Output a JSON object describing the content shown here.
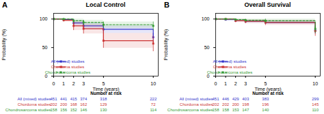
{
  "chart_data": [
    {
      "type": "step",
      "title": "Local Control",
      "annotations": [
        "A"
      ],
      "xlabel": "Time (years)",
      "ylabel": "Probability (%)",
      "xlim": [
        0,
        10.5
      ],
      "ylim": [
        0,
        110
      ],
      "xticks": [
        0,
        1,
        2,
        3,
        5,
        10
      ],
      "yticks": [
        0,
        50,
        100
      ],
      "grid": false,
      "legend": "lower left",
      "marker": "square",
      "x": [
        0,
        1,
        2,
        3,
        5,
        10
      ],
      "series": [
        {
          "name": "All (mixed) studies",
          "color": "#3333cc",
          "line_style": "solid",
          "values": [
            100,
            99,
            93,
            88,
            82,
            68
          ],
          "ci_upper": [
            100,
            100,
            97,
            93,
            88,
            75
          ],
          "ci_lower": [
            100,
            97,
            88,
            82,
            75,
            60
          ],
          "at_risk": [
            451,
            441,
            415,
            374,
            318,
            222
          ]
        },
        {
          "name": "Chordoma studies",
          "color": "#cc3333",
          "line_style": "solid",
          "values": [
            100,
            98,
            88,
            83,
            62,
            57
          ],
          "ci_upper": [
            100,
            100,
            95,
            91,
            75,
            70
          ],
          "ci_lower": [
            100,
            95,
            80,
            74,
            49,
            43
          ],
          "at_risk": [
            202,
            200,
            168,
            162,
            129,
            72
          ]
        },
        {
          "name": "Chondrosarcoma studies",
          "color": "#339933",
          "line_style": "dashed",
          "values": [
            100,
            100,
            97,
            94,
            90,
            88
          ],
          "ci_upper": [
            100,
            100,
            100,
            98,
            95,
            95
          ],
          "ci_lower": [
            100,
            99,
            93,
            89,
            84,
            80
          ],
          "at_risk": [
            158,
            156,
            152,
            146,
            130,
            114
          ]
        }
      ],
      "at_risk_title": "Number at risk",
      "at_risk_times": [
        0,
        1,
        2,
        3,
        5,
        10
      ]
    },
    {
      "type": "step",
      "title": "Overall Survival",
      "annotations": [
        "B"
      ],
      "xlabel": "Time (years)",
      "ylabel": "Probability (%)",
      "xlim": [
        0,
        10.5
      ],
      "ylim": [
        0,
        110
      ],
      "xticks": [
        0,
        1,
        2,
        3,
        5,
        10
      ],
      "yticks": [
        0,
        50,
        100
      ],
      "grid": false,
      "legend": "lower left",
      "marker": "square",
      "x": [
        0,
        1,
        2,
        3,
        5,
        10
      ],
      "series": [
        {
          "name": "All (mixed) studies",
          "color": "#3333cc",
          "line_style": "solid",
          "values": [
            100,
            99,
            97,
            96,
            94,
            80
          ],
          "ci_upper": [
            100,
            100,
            99,
            98,
            97,
            86
          ],
          "ci_lower": [
            100,
            98,
            95,
            93,
            91,
            74
          ],
          "at_risk": [
            451,
            446,
            429,
            403,
            383,
            299
          ]
        },
        {
          "name": "Chordoma studies",
          "color": "#cc3333",
          "line_style": "solid",
          "values": [
            100,
            100,
            97,
            96,
            94,
            79
          ],
          "ci_upper": [
            100,
            100,
            100,
            99,
            98,
            87
          ],
          "ci_lower": [
            100,
            99,
            94,
            92,
            89,
            70
          ],
          "at_risk": [
            202,
            202,
            200,
            198,
            196,
            145
          ]
        },
        {
          "name": "Chondrosarcoma studies",
          "color": "#339933",
          "line_style": "dashed",
          "values": [
            100,
            100,
            99,
            98,
            97,
            83
          ],
          "ci_upper": [
            100,
            100,
            100,
            100,
            100,
            90
          ],
          "ci_lower": [
            100,
            99,
            97,
            95,
            93,
            75
          ],
          "at_risk": [
            158,
            158,
            153,
            147,
            140,
            110
          ]
        }
      ],
      "at_risk_title": "Number at risk",
      "at_risk_times": [
        0,
        1,
        2,
        3,
        5,
        10
      ]
    }
  ]
}
